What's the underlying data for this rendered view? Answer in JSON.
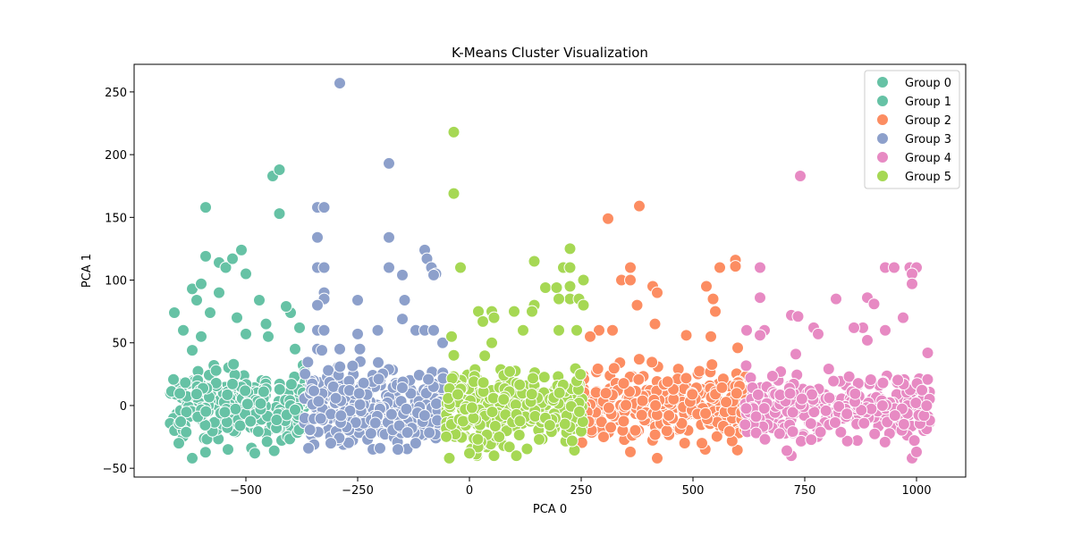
{
  "chart_data": {
    "type": "scatter",
    "title": "K-Means Cluster Visualization",
    "xlabel": "PCA 0",
    "ylabel": "PCA 1",
    "xlim": [
      -750,
      1110
    ],
    "ylim": [
      -57,
      272
    ],
    "xticks": [
      -500,
      -250,
      0,
      250,
      500,
      750,
      1000
    ],
    "yticks": [
      -50,
      0,
      50,
      100,
      150,
      200,
      250
    ],
    "xtick_labels": [
      "−500",
      "−250",
      "0",
      "250",
      "500",
      "750",
      "1000"
    ],
    "ytick_labels": [
      "−50",
      "0",
      "50",
      "100",
      "150",
      "200",
      "250"
    ],
    "grid": false,
    "legend_position": "top-right",
    "series": [
      {
        "name": "Group 0",
        "color": "#66c2a5",
        "x_range": [
          -670,
          -365
        ],
        "bulk_y_range": [
          -35,
          30
        ],
        "spread_points": [
          [
            -590,
            158
          ],
          [
            -440,
            183
          ],
          [
            -425,
            188
          ],
          [
            -425,
            153
          ],
          [
            -510,
            124
          ],
          [
            -590,
            119
          ],
          [
            -560,
            114
          ],
          [
            -620,
            93
          ],
          [
            -600,
            97
          ],
          [
            -400,
            74
          ],
          [
            -545,
            110
          ],
          [
            -660,
            74
          ],
          [
            -580,
            74
          ],
          [
            -470,
            84
          ],
          [
            -520,
            70
          ],
          [
            -620,
            44
          ],
          [
            -640,
            60
          ],
          [
            -450,
            55
          ],
          [
            -380,
            62
          ],
          [
            -560,
            90
          ],
          [
            -620,
            -42
          ],
          [
            -480,
            -38
          ],
          [
            -540,
            -35
          ],
          [
            -650,
            -30
          ]
        ]
      },
      {
        "name": "Group 1",
        "color": "#66c2a5",
        "x_range": [
          -650,
          -360
        ],
        "bulk_y_range": [
          -20,
          28
        ],
        "spread_points": [
          [
            -530,
            117
          ],
          [
            -500,
            105
          ],
          [
            -610,
            84
          ],
          [
            -410,
            79
          ],
          [
            -455,
            65
          ],
          [
            -600,
            55
          ],
          [
            -390,
            45
          ],
          [
            -500,
            57
          ]
        ]
      },
      {
        "name": "Group 2",
        "color": "#fc8d62",
        "x_range": [
          250,
          620
        ],
        "bulk_y_range": [
          -30,
          30
        ],
        "spread_points": [
          [
            310,
            149
          ],
          [
            380,
            159
          ],
          [
            595,
            116
          ],
          [
            595,
            111
          ],
          [
            560,
            110
          ],
          [
            360,
            110
          ],
          [
            340,
            100
          ],
          [
            360,
            100
          ],
          [
            410,
            95
          ],
          [
            420,
            90
          ],
          [
            530,
            95
          ],
          [
            545,
            85
          ],
          [
            550,
            75
          ],
          [
            375,
            80
          ],
          [
            290,
            60
          ],
          [
            270,
            55
          ],
          [
            320,
            60
          ],
          [
            415,
            65
          ],
          [
            485,
            56
          ],
          [
            540,
            55
          ],
          [
            600,
            46
          ],
          [
            420,
            -42
          ],
          [
            360,
            -37
          ],
          [
            520,
            -30
          ],
          [
            300,
            -25
          ]
        ]
      },
      {
        "name": "Group 3",
        "color": "#8da0cb",
        "x_range": [
          -370,
          -55
        ],
        "bulk_y_range": [
          -32,
          30
        ],
        "spread_points": [
          [
            -290,
            257
          ],
          [
            -180,
            193
          ],
          [
            -340,
            158
          ],
          [
            -325,
            158
          ],
          [
            -180,
            134
          ],
          [
            -340,
            134
          ],
          [
            -100,
            124
          ],
          [
            -95,
            117
          ],
          [
            -340,
            110
          ],
          [
            -325,
            110
          ],
          [
            -180,
            110
          ],
          [
            -150,
            104
          ],
          [
            -85,
            110
          ],
          [
            -75,
            105
          ],
          [
            -80,
            104
          ],
          [
            -325,
            90
          ],
          [
            -325,
            85
          ],
          [
            -250,
            84
          ],
          [
            -145,
            84
          ],
          [
            -340,
            80
          ],
          [
            -150,
            69
          ],
          [
            -340,
            60
          ],
          [
            -325,
            60
          ],
          [
            -250,
            57
          ],
          [
            -205,
            60
          ],
          [
            -120,
            60
          ],
          [
            -100,
            60
          ],
          [
            -80,
            60
          ],
          [
            -60,
            50
          ],
          [
            -290,
            45
          ],
          [
            -245,
            45
          ],
          [
            -340,
            45
          ],
          [
            -330,
            44
          ],
          [
            -200,
            -34
          ],
          [
            -160,
            -35
          ],
          [
            -360,
            -34
          ],
          [
            -310,
            -30
          ]
        ]
      },
      {
        "name": "Group 4",
        "color": "#e78ac3",
        "x_range": [
          615,
          1030
        ],
        "bulk_y_range": [
          -30,
          30
        ],
        "spread_points": [
          [
            740,
            183
          ],
          [
            930,
            110
          ],
          [
            950,
            110
          ],
          [
            985,
            110
          ],
          [
            1000,
            110
          ],
          [
            990,
            105
          ],
          [
            990,
            97
          ],
          [
            650,
            110
          ],
          [
            650,
            86
          ],
          [
            820,
            85
          ],
          [
            890,
            86
          ],
          [
            905,
            81
          ],
          [
            930,
            60
          ],
          [
            880,
            62
          ],
          [
            860,
            62
          ],
          [
            660,
            60
          ],
          [
            650,
            56
          ],
          [
            620,
            60
          ],
          [
            720,
            72
          ],
          [
            735,
            71
          ],
          [
            770,
            62
          ],
          [
            780,
            57
          ],
          [
            970,
            70
          ],
          [
            890,
            52
          ],
          [
            1025,
            42
          ],
          [
            730,
            41
          ],
          [
            990,
            -42
          ],
          [
            1000,
            -37
          ],
          [
            720,
            -40
          ],
          [
            710,
            -36
          ]
        ]
      },
      {
        "name": "Group 5",
        "color": "#a6d854",
        "x_range": [
          -55,
          255
        ],
        "bulk_y_range": [
          -33,
          30
        ],
        "spread_points": [
          [
            -35,
            218
          ],
          [
            -35,
            169
          ],
          [
            -20,
            110
          ],
          [
            145,
            115
          ],
          [
            210,
            110
          ],
          [
            225,
            110
          ],
          [
            170,
            94
          ],
          [
            195,
            94
          ],
          [
            225,
            125
          ],
          [
            225,
            95
          ],
          [
            225,
            85
          ],
          [
            200,
            85
          ],
          [
            255,
            100
          ],
          [
            245,
            85
          ],
          [
            255,
            80
          ],
          [
            145,
            80
          ],
          [
            140,
            75
          ],
          [
            100,
            75
          ],
          [
            50,
            75
          ],
          [
            20,
            75
          ],
          [
            30,
            67
          ],
          [
            55,
            70
          ],
          [
            120,
            60
          ],
          [
            200,
            60
          ],
          [
            240,
            60
          ],
          [
            -40,
            55
          ],
          [
            -35,
            40
          ],
          [
            50,
            50
          ],
          [
            -45,
            -42
          ],
          [
            55,
            -40
          ],
          [
            105,
            -40
          ],
          [
            0,
            -38
          ]
        ]
      }
    ]
  },
  "legend": {
    "items": [
      {
        "label": "Group 0",
        "color": "#66c2a5"
      },
      {
        "label": "Group 1",
        "color": "#66c2a5"
      },
      {
        "label": "Group 2",
        "color": "#fc8d62"
      },
      {
        "label": "Group 3",
        "color": "#8da0cb"
      },
      {
        "label": "Group 4",
        "color": "#e78ac3"
      },
      {
        "label": "Group 5",
        "color": "#a6d854"
      }
    ]
  }
}
